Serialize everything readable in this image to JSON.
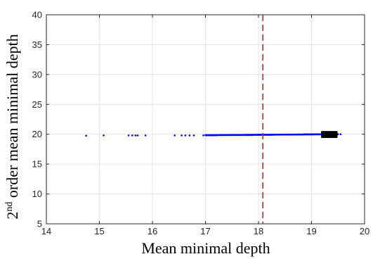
{
  "chart_data": {
    "type": "scatter",
    "xlabel": "Mean minimal depth",
    "ylabel_sup": "nd",
    "ylabel_pre": "2",
    "ylabel_rest": " order mean minimal depth",
    "xlim": [
      14,
      20
    ],
    "ylim": [
      5,
      40
    ],
    "xticks": [
      "14",
      "15",
      "16",
      "17",
      "18",
      "19",
      "20"
    ],
    "yticks": [
      "5",
      "10",
      "15",
      "20",
      "25",
      "30",
      "35",
      "40"
    ],
    "grid": true,
    "threshold_x": 18.08,
    "threshold_color": "#d62728",
    "series": [
      {
        "color": "#0000ff",
        "points": [
          [
            14.75,
            19.75
          ],
          [
            15.08,
            19.8
          ],
          [
            15.55,
            19.8
          ],
          [
            15.62,
            19.8
          ],
          [
            15.68,
            19.8
          ],
          [
            15.72,
            19.8
          ],
          [
            15.87,
            19.8
          ],
          [
            16.42,
            19.8
          ],
          [
            16.55,
            19.8
          ],
          [
            16.62,
            19.8
          ],
          [
            16.7,
            19.8
          ],
          [
            16.78,
            19.8
          ],
          [
            16.96,
            19.8
          ],
          [
            17.02,
            19.8
          ],
          [
            17.08,
            19.8
          ],
          [
            17.12,
            19.8
          ],
          [
            17.16,
            19.8
          ],
          [
            17.2,
            19.8
          ],
          [
            17.25,
            19.85
          ],
          [
            17.3,
            19.85
          ],
          [
            17.35,
            19.85
          ],
          [
            17.4,
            19.85
          ],
          [
            17.45,
            19.85
          ],
          [
            17.5,
            19.85
          ],
          [
            17.55,
            19.85
          ],
          [
            17.6,
            19.85
          ],
          [
            17.64,
            19.85
          ],
          [
            17.68,
            19.85
          ],
          [
            17.72,
            19.85
          ],
          [
            17.76,
            19.85
          ],
          [
            17.8,
            19.85
          ],
          [
            17.84,
            19.85
          ],
          [
            17.88,
            19.85
          ],
          [
            17.92,
            19.9
          ],
          [
            17.96,
            19.9
          ],
          [
            18.0,
            19.9
          ],
          [
            18.04,
            19.9
          ],
          [
            18.1,
            19.9
          ],
          [
            18.14,
            19.9
          ],
          [
            18.18,
            19.9
          ],
          [
            18.22,
            19.9
          ],
          [
            18.26,
            19.9
          ],
          [
            18.3,
            19.95
          ],
          [
            18.34,
            19.95
          ],
          [
            18.38,
            19.95
          ],
          [
            18.42,
            19.95
          ],
          [
            18.46,
            19.95
          ],
          [
            18.5,
            19.95
          ],
          [
            18.54,
            19.95
          ],
          [
            18.58,
            19.95
          ],
          [
            18.62,
            19.95
          ],
          [
            18.66,
            19.95
          ],
          [
            18.7,
            19.95
          ],
          [
            18.74,
            19.95
          ],
          [
            18.78,
            19.95
          ],
          [
            18.82,
            19.95
          ],
          [
            18.86,
            20.0
          ],
          [
            18.9,
            20.0
          ],
          [
            18.94,
            20.0
          ],
          [
            18.98,
            20.0
          ],
          [
            19.02,
            20.0
          ],
          [
            19.06,
            20.0
          ],
          [
            19.1,
            20.0
          ],
          [
            19.14,
            20.0
          ],
          [
            19.18,
            20.0
          ],
          [
            19.5,
            20.0
          ],
          [
            19.55,
            20.0
          ]
        ]
      },
      {
        "color": "#000000",
        "cluster_x": [
          19.2,
          19.47
        ],
        "cluster_y": [
          19.55,
          20.35
        ]
      }
    ]
  }
}
